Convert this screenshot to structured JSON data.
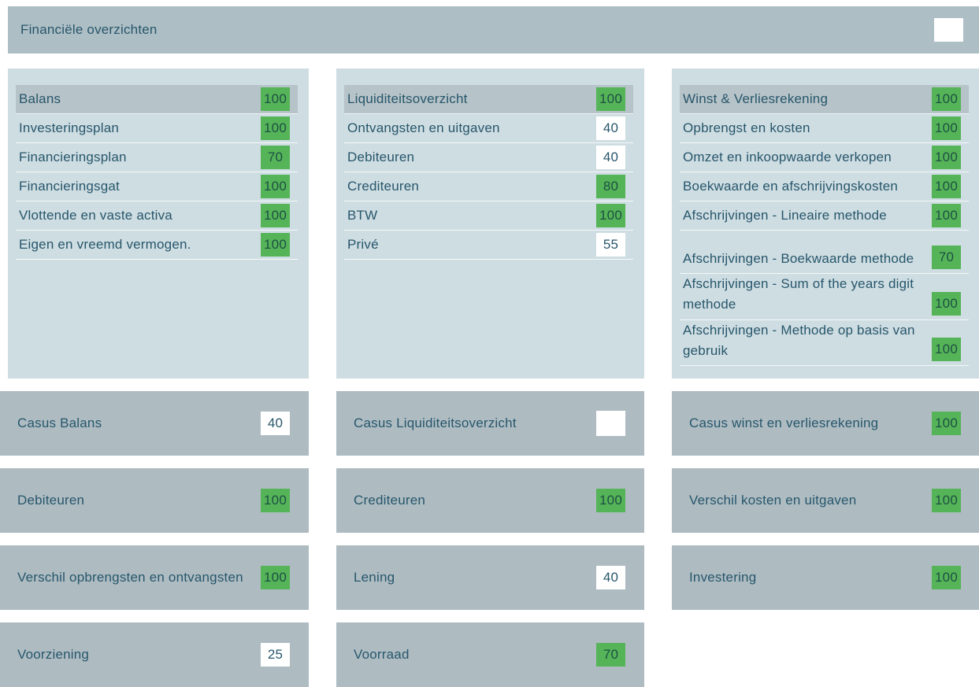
{
  "header": {
    "title": "Financiële overzichten"
  },
  "colors": {
    "bar": "#adbec5",
    "panel": "#cedde2",
    "hl": "#b6c3c8",
    "card": "#aebcc2",
    "green": "#55b457",
    "text": "#27566b",
    "badge_dark": "#1d5045"
  },
  "panels": [
    {
      "id": "balans",
      "items": [
        {
          "label": "Balans",
          "score": "100",
          "variant": "green",
          "highlighted": true
        },
        {
          "label": "Investeringsplan",
          "score": "100",
          "variant": "green"
        },
        {
          "label": "Financieringsplan",
          "score": "70",
          "variant": "green"
        },
        {
          "label": "Financieringsgat",
          "score": "100",
          "variant": "green"
        },
        {
          "label": "Vlottende en vaste activa",
          "score": "100",
          "variant": "green"
        },
        {
          "label": "Eigen en vreemd vermogen.",
          "score": "100",
          "variant": "green"
        }
      ]
    },
    {
      "id": "liquiditeit",
      "items": [
        {
          "label": "Liquiditeitsoverzicht",
          "score": "100",
          "variant": "green",
          "highlighted": true
        },
        {
          "label": "Ontvangsten en uitgaven",
          "score": "40",
          "variant": "white"
        },
        {
          "label": "Debiteuren",
          "score": "40",
          "variant": "white"
        },
        {
          "label": "Crediteuren",
          "score": "80",
          "variant": "green"
        },
        {
          "label": "BTW",
          "score": "100",
          "variant": "green"
        },
        {
          "label": "Privé",
          "score": "55",
          "variant": "white"
        }
      ]
    },
    {
      "id": "winst-verlies",
      "items": [
        {
          "label": "Winst & Verliesrekening",
          "score": "100",
          "variant": "green",
          "highlighted": true
        },
        {
          "label": "Opbrengst en kosten",
          "score": "100",
          "variant": "green"
        },
        {
          "label": "Omzet en inkoopwaarde verkopen",
          "score": "100",
          "variant": "green"
        },
        {
          "label": "Boekwaarde en afschrijvingskosten",
          "score": "100",
          "variant": "green"
        },
        {
          "label": "Afschrijvingen - Lineaire methode",
          "score": "100",
          "variant": "green"
        },
        {
          "label": "Afschrijvingen - Boekwaarde methode",
          "score": "70",
          "variant": "green",
          "tall": true
        },
        {
          "label": "Afschrijvingen - Sum of the years digit methode",
          "score": "100",
          "variant": "green",
          "tall": true
        },
        {
          "label": "Afschrijvingen - Methode op basis van gebruik",
          "score": "100",
          "variant": "green",
          "tall": true
        }
      ]
    }
  ],
  "card_rows": [
    [
      {
        "label": "Casus Balans",
        "score": "40",
        "variant": "white"
      },
      {
        "label": "Casus Liquiditeitsoverzicht",
        "score": "",
        "variant": "white empty"
      },
      {
        "label": "Casus winst en verliesrekening",
        "score": "100",
        "variant": "green"
      }
    ],
    [
      {
        "label": "Debiteuren",
        "score": "100",
        "variant": "green"
      },
      {
        "label": "Crediteuren",
        "score": "100",
        "variant": "green"
      },
      {
        "label": "Verschil kosten en uitgaven",
        "score": "100",
        "variant": "green"
      }
    ],
    [
      {
        "label": "Verschil opbrengsten en ontvangsten",
        "score": "100",
        "variant": "green"
      },
      {
        "label": "Lening",
        "score": "40",
        "variant": "white"
      },
      {
        "label": "Investering",
        "score": "100",
        "variant": "green"
      }
    ],
    [
      {
        "label": "Voorziening",
        "score": "25",
        "variant": "white"
      },
      {
        "label": "Voorraad",
        "score": "70",
        "variant": "green"
      },
      null
    ]
  ]
}
